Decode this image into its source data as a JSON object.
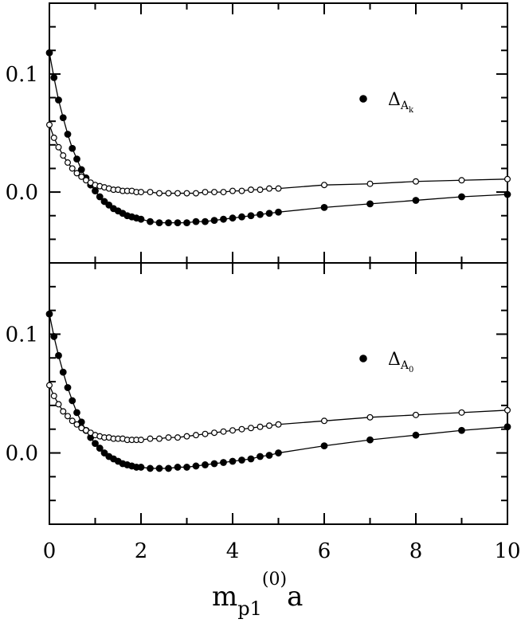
{
  "chart_data": {
    "type": "scatter",
    "xlabel": {
      "main": "m",
      "sub": "p1",
      "sup": "(0)",
      "tail": "a"
    },
    "xlim": [
      0,
      10
    ],
    "x_ticks": [
      "0",
      "2",
      "4",
      "6",
      "8",
      "10"
    ],
    "panels": [
      {
        "id": "top",
        "ylim": [
          -0.06,
          0.16
        ],
        "y_ticks": [
          "0.0",
          "0.1"
        ],
        "legend": {
          "symbol": "Δ",
          "sub": "A",
          "subsub": "k",
          "marker": "filled",
          "placement": "upper-right"
        },
        "series": [
          {
            "marker": "filled",
            "x": [
              0,
              0.1,
              0.2,
              0.3,
              0.4,
              0.5,
              0.6,
              0.7,
              0.8,
              0.9,
              1.0,
              1.1,
              1.2,
              1.3,
              1.4,
              1.5,
              1.6,
              1.7,
              1.8,
              1.9,
              2.0,
              2.2,
              2.4,
              2.6,
              2.8,
              3.0,
              3.2,
              3.4,
              3.6,
              3.8,
              4.0,
              4.2,
              4.4,
              4.6,
              4.8,
              5.0,
              6,
              7,
              8,
              9,
              10
            ],
            "y": [
              0.118,
              0.097,
              0.078,
              0.063,
              0.049,
              0.037,
              0.028,
              0.019,
              0.012,
              0.006,
              0.001,
              -0.004,
              -0.008,
              -0.011,
              -0.014,
              -0.016,
              -0.018,
              -0.02,
              -0.021,
              -0.022,
              -0.023,
              -0.025,
              -0.026,
              -0.026,
              -0.026,
              -0.026,
              -0.025,
              -0.025,
              -0.024,
              -0.023,
              -0.022,
              -0.021,
              -0.02,
              -0.019,
              -0.018,
              -0.017,
              -0.013,
              -0.01,
              -0.007,
              -0.004,
              -0.002
            ]
          },
          {
            "marker": "open",
            "x": [
              0,
              0.1,
              0.2,
              0.3,
              0.4,
              0.5,
              0.6,
              0.7,
              0.8,
              0.9,
              1.0,
              1.1,
              1.2,
              1.3,
              1.4,
              1.5,
              1.6,
              1.7,
              1.8,
              1.9,
              2.0,
              2.2,
              2.4,
              2.6,
              2.8,
              3.0,
              3.2,
              3.4,
              3.6,
              3.8,
              4.0,
              4.2,
              4.4,
              4.6,
              4.8,
              5.0,
              6,
              7,
              8,
              9,
              10
            ],
            "y": [
              0.057,
              0.046,
              0.038,
              0.031,
              0.025,
              0.02,
              0.016,
              0.013,
              0.01,
              0.008,
              0.006,
              0.005,
              0.004,
              0.003,
              0.002,
              0.002,
              0.001,
              0.001,
              0.001,
              0.0,
              0.0,
              0.0,
              -0.001,
              -0.001,
              -0.001,
              -0.001,
              -0.001,
              0.0,
              0.0,
              0.0,
              0.001,
              0.001,
              0.002,
              0.002,
              0.003,
              0.003,
              0.006,
              0.007,
              0.009,
              0.01,
              0.011
            ]
          }
        ]
      },
      {
        "id": "bottom",
        "ylim": [
          -0.06,
          0.16
        ],
        "y_ticks": [
          "0.0",
          "0.1"
        ],
        "legend": {
          "symbol": "Δ",
          "sub": "A",
          "subsub": "0",
          "marker": "filled",
          "placement": "upper-right"
        },
        "series": [
          {
            "marker": "filled",
            "x": [
              0,
              0.1,
              0.2,
              0.3,
              0.4,
              0.5,
              0.6,
              0.7,
              0.8,
              0.9,
              1.0,
              1.1,
              1.2,
              1.3,
              1.4,
              1.5,
              1.6,
              1.7,
              1.8,
              1.9,
              2.0,
              2.2,
              2.4,
              2.6,
              2.8,
              3.0,
              3.2,
              3.4,
              3.6,
              3.8,
              4.0,
              4.2,
              4.4,
              4.6,
              4.8,
              5.0,
              6,
              7,
              8,
              9,
              10
            ],
            "y": [
              0.117,
              0.098,
              0.082,
              0.068,
              0.055,
              0.044,
              0.034,
              0.026,
              0.019,
              0.013,
              0.008,
              0.004,
              0.0,
              -0.003,
              -0.005,
              -0.007,
              -0.009,
              -0.01,
              -0.011,
              -0.012,
              -0.012,
              -0.013,
              -0.013,
              -0.013,
              -0.012,
              -0.012,
              -0.011,
              -0.01,
              -0.009,
              -0.008,
              -0.007,
              -0.006,
              -0.005,
              -0.003,
              -0.002,
              0.0,
              0.006,
              0.011,
              0.015,
              0.019,
              0.022
            ]
          },
          {
            "marker": "open",
            "x": [
              0,
              0.1,
              0.2,
              0.3,
              0.4,
              0.5,
              0.6,
              0.7,
              0.8,
              0.9,
              1.0,
              1.1,
              1.2,
              1.3,
              1.4,
              1.5,
              1.6,
              1.7,
              1.8,
              1.9,
              2.0,
              2.2,
              2.4,
              2.6,
              2.8,
              3.0,
              3.2,
              3.4,
              3.6,
              3.8,
              4.0,
              4.2,
              4.4,
              4.6,
              4.8,
              5.0,
              6,
              7,
              8,
              9,
              10
            ],
            "y": [
              0.057,
              0.048,
              0.041,
              0.035,
              0.031,
              0.027,
              0.024,
              0.021,
              0.019,
              0.017,
              0.015,
              0.014,
              0.013,
              0.013,
              0.012,
              0.012,
              0.012,
              0.011,
              0.011,
              0.011,
              0.011,
              0.012,
              0.012,
              0.013,
              0.013,
              0.014,
              0.015,
              0.016,
              0.017,
              0.018,
              0.019,
              0.02,
              0.021,
              0.022,
              0.023,
              0.024,
              0.027,
              0.03,
              0.032,
              0.034,
              0.036
            ]
          }
        ]
      }
    ]
  }
}
